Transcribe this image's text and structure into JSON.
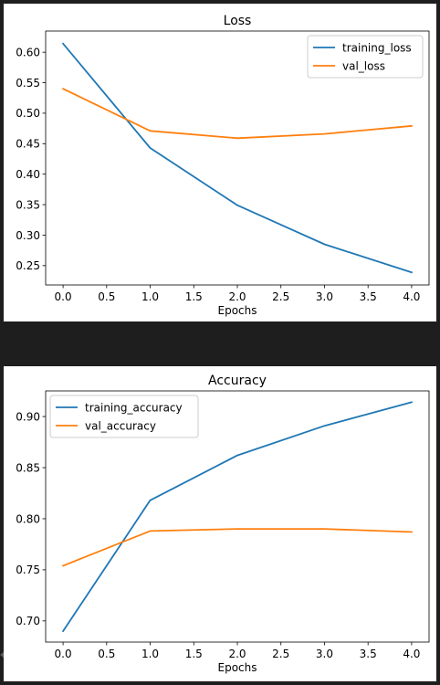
{
  "chart_data": [
    {
      "type": "line",
      "title": "Loss",
      "xlabel": "Epochs",
      "ylabel": "",
      "x": [
        0,
        1,
        2,
        3,
        4
      ],
      "xlim": [
        -0.2,
        4.2
      ],
      "ylim": [
        0.2183,
        0.6347
      ],
      "xticks": [
        "0.0",
        "0.5",
        "1.0",
        "1.5",
        "2.0",
        "2.5",
        "3.0",
        "3.5",
        "4.0"
      ],
      "yticks": [
        "0.25",
        "0.30",
        "0.35",
        "0.40",
        "0.45",
        "0.50",
        "0.55",
        "0.60"
      ],
      "grid": false,
      "legend_position": "top-right",
      "series": [
        {
          "name": "training_loss",
          "color": "#1f77b4",
          "values": [
            0.614,
            0.443,
            0.349,
            0.285,
            0.239
          ]
        },
        {
          "name": "val_loss",
          "color": "#ff7f0e",
          "values": [
            0.54,
            0.471,
            0.459,
            0.466,
            0.479
          ]
        }
      ]
    },
    {
      "type": "line",
      "title": "Accuracy",
      "xlabel": "Epochs",
      "ylabel": "",
      "x": [
        0,
        1,
        2,
        3,
        4
      ],
      "xlim": [
        -0.2,
        4.2
      ],
      "ylim": [
        0.6793,
        0.9251
      ],
      "xticks": [
        "0.0",
        "0.5",
        "1.0",
        "1.5",
        "2.0",
        "2.5",
        "3.0",
        "3.5",
        "4.0"
      ],
      "yticks": [
        "0.70",
        "0.75",
        "0.80",
        "0.85",
        "0.90"
      ],
      "grid": false,
      "legend_position": "top-left",
      "series": [
        {
          "name": "training_accuracy",
          "color": "#1f77b4",
          "values": [
            0.69,
            0.818,
            0.862,
            0.891,
            0.914
          ]
        },
        {
          "name": "val_accuracy",
          "color": "#ff7f0e",
          "values": [
            0.754,
            0.788,
            0.79,
            0.79,
            0.787
          ]
        }
      ]
    }
  ]
}
